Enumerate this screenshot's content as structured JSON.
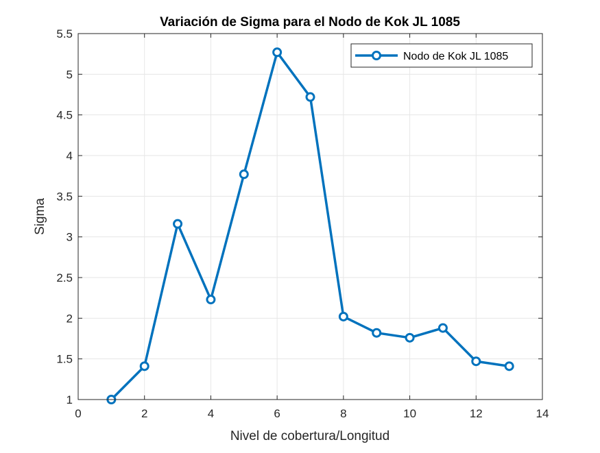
{
  "chart_data": {
    "type": "line",
    "title": "Variación de Sigma para el Nodo de Kok JL 1085",
    "xlabel": "Nivel de cobertura/Longitud",
    "ylabel": "Sigma",
    "xlim": [
      0,
      14
    ],
    "ylim": [
      1,
      5.5
    ],
    "xticks": [
      "0",
      "2",
      "4",
      "6",
      "8",
      "10",
      "12",
      "14"
    ],
    "yticks": [
      "1",
      "1.5",
      "2",
      "2.5",
      "3",
      "3.5",
      "4",
      "4.5",
      "5",
      "5.5"
    ],
    "grid": true,
    "legend_position": "top-right",
    "series": [
      {
        "name": "Nodo de Kok JL 1085",
        "color": "#0072BD",
        "marker": "circle",
        "x": [
          1,
          2,
          3,
          4,
          5,
          6,
          7,
          8,
          9,
          10,
          11,
          12,
          13
        ],
        "y": [
          1.0,
          1.41,
          3.16,
          2.23,
          3.77,
          5.27,
          4.72,
          2.02,
          1.82,
          1.76,
          1.88,
          1.47,
          1.41
        ]
      }
    ]
  }
}
